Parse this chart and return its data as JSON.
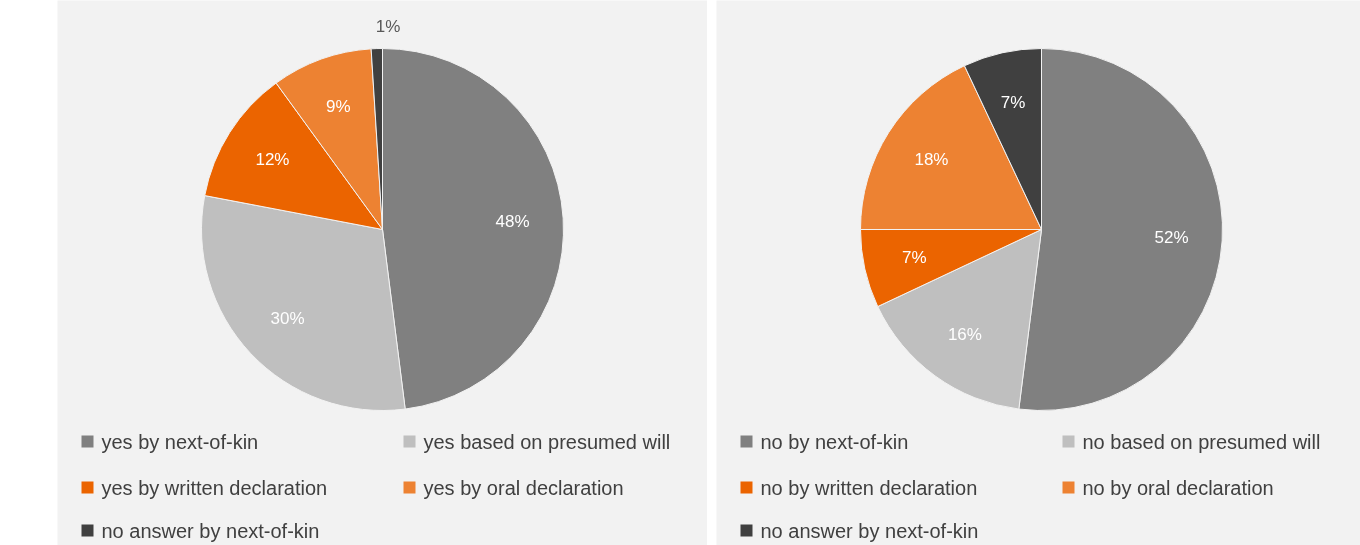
{
  "chart_data": [
    {
      "type": "pie",
      "categories": [
        "yes by next-of-kin",
        "yes based on presumed will",
        "yes by written declaration",
        "yes by oral declaration",
        "no answer by next-of-kin"
      ],
      "values": [
        48,
        30,
        12,
        9,
        1
      ],
      "colors": [
        "#808080",
        "#bfbfbf",
        "#eb6400",
        "#ed8232",
        "#404040"
      ],
      "value_labels": [
        "48%",
        "30%",
        "12%",
        "9%",
        "1%"
      ],
      "legend": "bottom"
    },
    {
      "type": "pie",
      "categories": [
        "no by next-of-kin",
        "no based on presumed will",
        "no by written declaration",
        "no by oral declaration",
        "no answer by next-of-kin"
      ],
      "values": [
        52,
        16,
        7,
        18,
        7
      ],
      "colors": [
        "#808080",
        "#bfbfbf",
        "#eb6400",
        "#ed8232",
        "#404040"
      ],
      "value_labels": [
        "52%",
        "16%",
        "7%",
        "18%",
        "7%"
      ],
      "legend": "bottom"
    }
  ]
}
